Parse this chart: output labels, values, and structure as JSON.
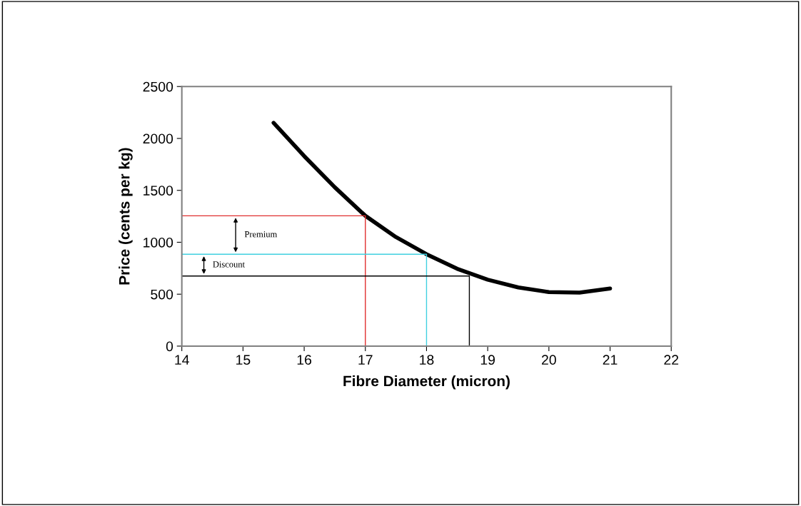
{
  "chart_data": {
    "type": "line",
    "xlabel": "Fibre Diameter (micron)",
    "ylabel": "Price (cents per kg)",
    "series": [
      {
        "color": "#000000",
        "x": [
          15.5,
          16,
          16.5,
          17,
          17.5,
          18,
          18.5,
          19,
          19.5,
          20,
          20.5,
          21
        ],
        "values": [
          2150,
          1830,
          1530,
          1255,
          1050,
          885,
          745,
          640,
          565,
          520,
          515,
          555
        ],
        "line_style": "solid"
      },
      {
        "color": "#e03030",
        "x": [
          14,
          17,
          17
        ],
        "values": [
          1255,
          1255,
          0
        ],
        "line_style": "solid"
      },
      {
        "color": "#40d0e0",
        "x": [
          14,
          18,
          18
        ],
        "values": [
          885,
          885,
          0
        ],
        "line_style": "solid"
      },
      {
        "color": "#000000",
        "x": [
          14,
          18.7,
          18.7
        ],
        "values": [
          675,
          675,
          0
        ],
        "line_style": "solid"
      }
    ],
    "annotations": [
      "Premium",
      "Discount"
    ],
    "xlim": [
      14,
      22
    ],
    "xticks": [
      14,
      15,
      16,
      17,
      18,
      19,
      20,
      21,
      22
    ],
    "ylim": [
      0,
      2500
    ],
    "yticks": [
      0,
      500,
      1000,
      1500,
      2000,
      2500
    ],
    "grid": false,
    "legend": false,
    "marker": "none"
  }
}
